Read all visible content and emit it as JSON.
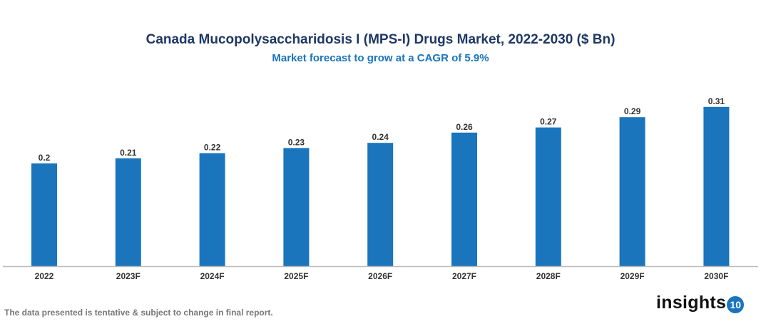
{
  "chart_data": {
    "type": "bar",
    "title": "Canada Mucopolysaccharidosis I (MPS-I) Drugs Market, 2022-2030 ($ Bn)",
    "subtitle": "Market forecast to grow at a CAGR of 5.9%",
    "categories": [
      "2022",
      "2023F",
      "2024F",
      "2025F",
      "2026F",
      "2027F",
      "2028F",
      "2029F",
      "2030F"
    ],
    "values": [
      0.2,
      0.21,
      0.22,
      0.23,
      0.24,
      0.26,
      0.27,
      0.29,
      0.31
    ],
    "data_labels": [
      "0.2",
      "0.21",
      "0.22",
      "0.23",
      "0.24",
      "0.26",
      "0.27",
      "0.29",
      "0.31"
    ],
    "ylim": [
      0,
      0.31
    ],
    "grid": false,
    "legend": "none",
    "bar_color": "#1a75bc"
  },
  "footer": "The data presented is tentative & subject to change in final report.",
  "logo": {
    "text": "insights",
    "badge": "10"
  }
}
